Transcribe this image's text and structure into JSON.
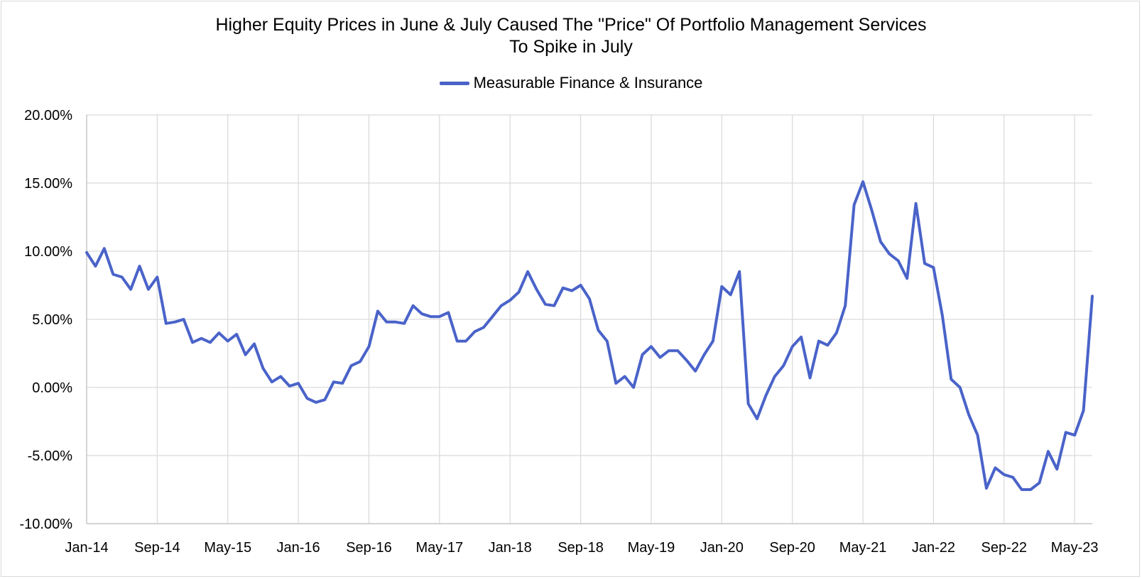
{
  "chart_data": {
    "type": "line",
    "title_lines": [
      "Higher Equity Prices in June & July Caused The \"Price\" Of Portfolio Management Services",
      "To Spike in July"
    ],
    "legend_position": "top-center",
    "ylim": [
      -10,
      20
    ],
    "y_ticks": [
      -10,
      -5,
      0,
      5,
      10,
      15,
      20
    ],
    "y_tick_labels": [
      "-10.00%",
      "-5.00%",
      "0.00%",
      "5.00%",
      "10.00%",
      "15.00%",
      "20.00%"
    ],
    "x_start": "Jan-14",
    "x_tick_labels": [
      "Jan-14",
      "Sep-14",
      "May-15",
      "Jan-16",
      "Sep-16",
      "May-17",
      "Jan-18",
      "Sep-18",
      "May-19",
      "Jan-20",
      "Sep-20",
      "May-21",
      "Jan-22",
      "Sep-22",
      "May-23"
    ],
    "x_tick_step_months": 8,
    "grid": true,
    "colors": {
      "series": "#4a63c9",
      "grid": "#d9d9d9",
      "axis": "#bfbfbf"
    },
    "series": [
      {
        "name": "Measurable Finance & Insurance",
        "values": [
          9.9,
          8.9,
          10.2,
          8.3,
          8.1,
          7.2,
          8.9,
          7.2,
          8.1,
          4.7,
          4.8,
          5.0,
          3.3,
          3.6,
          3.3,
          4.0,
          3.4,
          3.9,
          2.4,
          3.2,
          1.4,
          0.4,
          0.8,
          0.1,
          0.3,
          -0.8,
          -1.1,
          -0.9,
          0.4,
          0.3,
          1.6,
          1.9,
          3.0,
          5.6,
          4.8,
          4.8,
          4.7,
          6.0,
          5.4,
          5.2,
          5.2,
          5.5,
          3.4,
          3.4,
          4.1,
          4.4,
          5.2,
          6.0,
          6.4,
          7.0,
          8.5,
          7.2,
          6.1,
          6.0,
          7.3,
          7.1,
          7.5,
          6.5,
          4.2,
          3.4,
          0.3,
          0.8,
          0.0,
          2.4,
          3.0,
          2.2,
          2.7,
          2.7,
          2.0,
          1.2,
          2.4,
          3.4,
          7.4,
          6.8,
          8.5,
          -1.2,
          -2.3,
          -0.6,
          0.8,
          1.6,
          3.0,
          3.7,
          0.7,
          3.4,
          3.1,
          4.0,
          6.0,
          13.4,
          15.1,
          13.0,
          10.7,
          9.8,
          9.3,
          8.0,
          13.5,
          9.1,
          8.8,
          5.3,
          0.6,
          0.0,
          -2.0,
          -3.5,
          -7.4,
          -5.9,
          -6.4,
          -6.6,
          -7.5,
          -7.5,
          -7.0,
          -4.7,
          -6.0,
          -3.3,
          -3.5,
          -1.7,
          6.7
        ]
      }
    ]
  }
}
